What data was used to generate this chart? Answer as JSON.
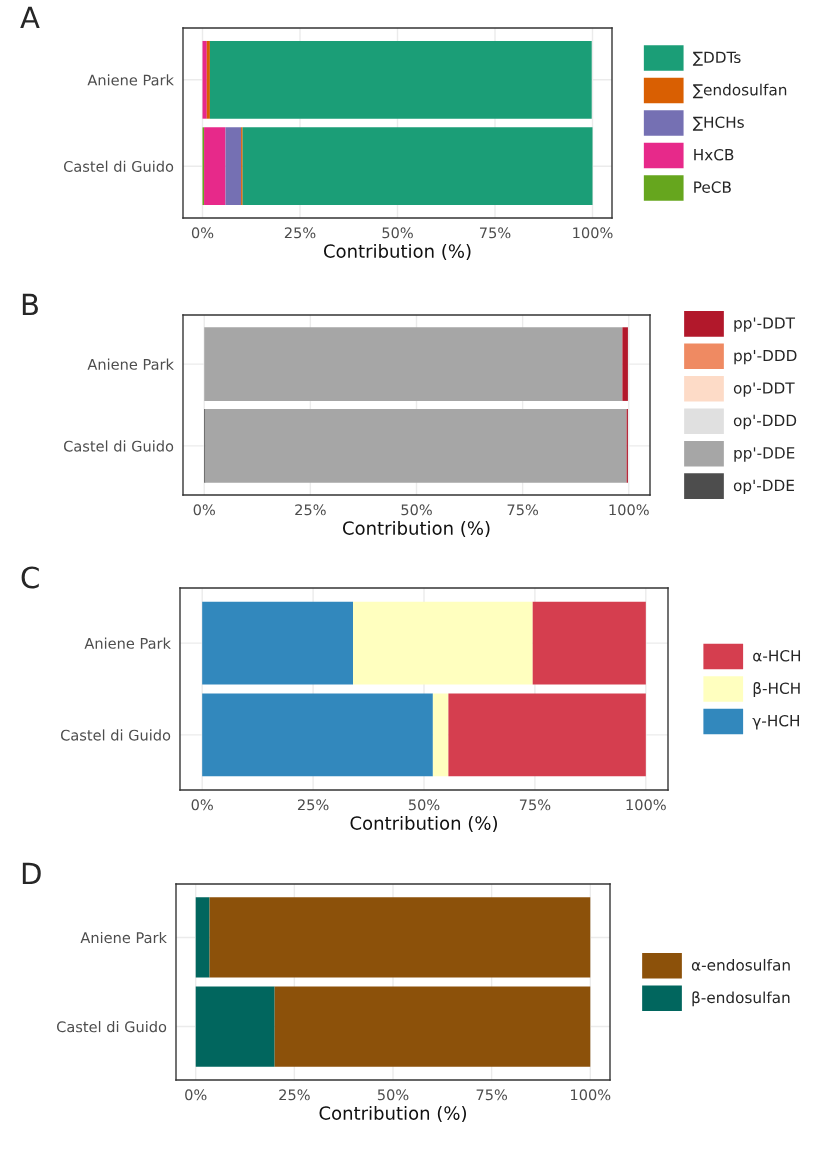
{
  "chart_data": [
    {
      "type": "bar",
      "title": "A",
      "orientation": "horizontal",
      "stacked": true,
      "categories": [
        "Aniene Park",
        "Castel di Guido"
      ],
      "xlabel": "Contribution (%)",
      "xlim": [
        -5,
        105
      ],
      "xticks": [
        {
          "value": 0,
          "label": "0%"
        },
        {
          "value": 25,
          "label": "25%"
        },
        {
          "value": 50,
          "label": "50%"
        },
        {
          "value": 75,
          "label": "75%"
        },
        {
          "value": 100,
          "label": "100%"
        }
      ],
      "grid": true,
      "legend": "right",
      "series": [
        {
          "name": "PeCB",
          "color": "#66a61e",
          "values": [
            0,
            0.4
          ]
        },
        {
          "name": "HxCB",
          "color": "#e7298a",
          "values": [
            1.1,
            5.5
          ]
        },
        {
          "name": "∑HCHs",
          "color": "#7570b3",
          "values": [
            null,
            4.0
          ]
        },
        {
          "name": "∑endosulfan",
          "color": "#d95f02",
          "values": [
            0.8,
            0.4
          ]
        },
        {
          "name": "∑DDTs",
          "color": "#1b9e77",
          "values": [
            97.9,
            89.7
          ]
        }
      ]
    },
    {
      "type": "bar",
      "title": "B",
      "orientation": "horizontal",
      "stacked": true,
      "categories": [
        "Aniene Park",
        "Castel di Guido"
      ],
      "xlabel": "Contribution (%)",
      "xlim": [
        -5,
        105
      ],
      "xticks": [
        {
          "value": 0,
          "label": "0%"
        },
        {
          "value": 25,
          "label": "25%"
        },
        {
          "value": 50,
          "label": "50%"
        },
        {
          "value": 75,
          "label": "75%"
        },
        {
          "value": 100,
          "label": "100%"
        }
      ],
      "grid": true,
      "legend": "right",
      "series": [
        {
          "name": "op'-DDE",
          "color": "#4d4d4d",
          "values": [
            0,
            0.3
          ]
        },
        {
          "name": "pp'-DDE",
          "color": "#a6a6a6",
          "values": [
            98.5,
            99.2
          ]
        },
        {
          "name": "op'-DDD",
          "color": "#e0e0e0",
          "values": [
            0,
            0
          ]
        },
        {
          "name": "op'-DDT",
          "color": "#fddbc7",
          "values": [
            0,
            0
          ]
        },
        {
          "name": "pp'-DDD",
          "color": "#ef8a62",
          "values": [
            null,
            null
          ]
        },
        {
          "name": "pp'-DDT",
          "color": "#b2182b",
          "values": [
            1.3,
            0.3
          ]
        }
      ]
    },
    {
      "type": "bar",
      "title": "C",
      "orientation": "horizontal",
      "stacked": true,
      "categories": [
        "Aniene Park",
        "Castel di Guido"
      ],
      "xlabel": "Contribution (%)",
      "xlim": [
        -5,
        105
      ],
      "xticks": [
        {
          "value": 0,
          "label": "0%"
        },
        {
          "value": 25,
          "label": "25%"
        },
        {
          "value": 50,
          "label": "50%"
        },
        {
          "value": 75,
          "label": "75%"
        },
        {
          "value": 100,
          "label": "100%"
        }
      ],
      "grid": true,
      "legend": "right",
      "series": [
        {
          "name": "γ-HCH",
          "color": "#3288bd",
          "values": [
            34,
            52
          ]
        },
        {
          "name": "β-HCH",
          "color": "#ffffbf",
          "values": [
            40.5,
            3.5
          ]
        },
        {
          "name": "α-HCH",
          "color": "#d53e4f",
          "values": [
            25.5,
            44.5
          ]
        }
      ]
    },
    {
      "type": "bar",
      "title": "D",
      "orientation": "horizontal",
      "stacked": true,
      "categories": [
        "Aniene Park",
        "Castel di Guido"
      ],
      "xlabel": "Contribution (%)",
      "xlim": [
        -5,
        105
      ],
      "xticks": [
        {
          "value": 0,
          "label": "0%"
        },
        {
          "value": 25,
          "label": "25%"
        },
        {
          "value": 50,
          "label": "50%"
        },
        {
          "value": 75,
          "label": "75%"
        },
        {
          "value": 100,
          "label": "100%"
        }
      ],
      "grid": true,
      "legend": "right",
      "series": [
        {
          "name": "β-endosulfan",
          "color": "#01665e",
          "values": [
            3.5,
            20
          ]
        },
        {
          "name": "α-endosulfan",
          "color": "#8c510a",
          "values": [
            96.5,
            80
          ]
        }
      ]
    }
  ]
}
